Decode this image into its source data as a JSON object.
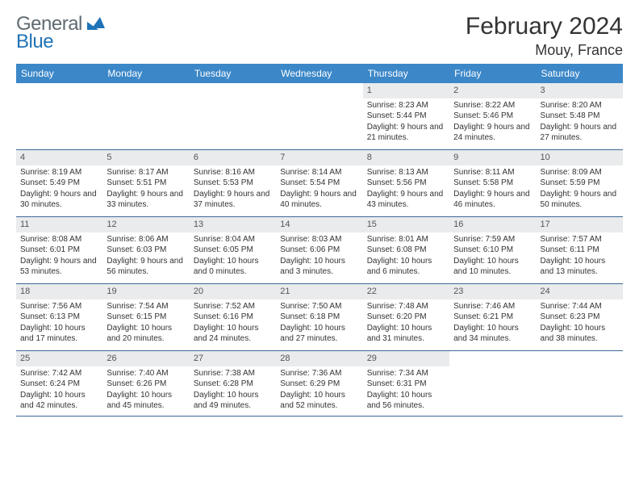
{
  "logo": {
    "word1": "General",
    "word2": "Blue",
    "mark_color": "#1f73b7",
    "text_color": "#5f6b72"
  },
  "title": "February 2024",
  "location": "Mouy, France",
  "colors": {
    "header_bg": "#3b87c8",
    "header_text": "#ffffff",
    "daynum_bg": "#e9ebec",
    "row_border": "#3b6a9a",
    "body_text": "#333333"
  },
  "weekdays": [
    "Sunday",
    "Monday",
    "Tuesday",
    "Wednesday",
    "Thursday",
    "Friday",
    "Saturday"
  ],
  "weeks": [
    [
      null,
      null,
      null,
      null,
      {
        "n": "1",
        "sunrise": "Sunrise: 8:23 AM",
        "sunset": "Sunset: 5:44 PM",
        "daylight": "Daylight: 9 hours and 21 minutes."
      },
      {
        "n": "2",
        "sunrise": "Sunrise: 8:22 AM",
        "sunset": "Sunset: 5:46 PM",
        "daylight": "Daylight: 9 hours and 24 minutes."
      },
      {
        "n": "3",
        "sunrise": "Sunrise: 8:20 AM",
        "sunset": "Sunset: 5:48 PM",
        "daylight": "Daylight: 9 hours and 27 minutes."
      }
    ],
    [
      {
        "n": "4",
        "sunrise": "Sunrise: 8:19 AM",
        "sunset": "Sunset: 5:49 PM",
        "daylight": "Daylight: 9 hours and 30 minutes."
      },
      {
        "n": "5",
        "sunrise": "Sunrise: 8:17 AM",
        "sunset": "Sunset: 5:51 PM",
        "daylight": "Daylight: 9 hours and 33 minutes."
      },
      {
        "n": "6",
        "sunrise": "Sunrise: 8:16 AM",
        "sunset": "Sunset: 5:53 PM",
        "daylight": "Daylight: 9 hours and 37 minutes."
      },
      {
        "n": "7",
        "sunrise": "Sunrise: 8:14 AM",
        "sunset": "Sunset: 5:54 PM",
        "daylight": "Daylight: 9 hours and 40 minutes."
      },
      {
        "n": "8",
        "sunrise": "Sunrise: 8:13 AM",
        "sunset": "Sunset: 5:56 PM",
        "daylight": "Daylight: 9 hours and 43 minutes."
      },
      {
        "n": "9",
        "sunrise": "Sunrise: 8:11 AM",
        "sunset": "Sunset: 5:58 PM",
        "daylight": "Daylight: 9 hours and 46 minutes."
      },
      {
        "n": "10",
        "sunrise": "Sunrise: 8:09 AM",
        "sunset": "Sunset: 5:59 PM",
        "daylight": "Daylight: 9 hours and 50 minutes."
      }
    ],
    [
      {
        "n": "11",
        "sunrise": "Sunrise: 8:08 AM",
        "sunset": "Sunset: 6:01 PM",
        "daylight": "Daylight: 9 hours and 53 minutes."
      },
      {
        "n": "12",
        "sunrise": "Sunrise: 8:06 AM",
        "sunset": "Sunset: 6:03 PM",
        "daylight": "Daylight: 9 hours and 56 minutes."
      },
      {
        "n": "13",
        "sunrise": "Sunrise: 8:04 AM",
        "sunset": "Sunset: 6:05 PM",
        "daylight": "Daylight: 10 hours and 0 minutes."
      },
      {
        "n": "14",
        "sunrise": "Sunrise: 8:03 AM",
        "sunset": "Sunset: 6:06 PM",
        "daylight": "Daylight: 10 hours and 3 minutes."
      },
      {
        "n": "15",
        "sunrise": "Sunrise: 8:01 AM",
        "sunset": "Sunset: 6:08 PM",
        "daylight": "Daylight: 10 hours and 6 minutes."
      },
      {
        "n": "16",
        "sunrise": "Sunrise: 7:59 AM",
        "sunset": "Sunset: 6:10 PM",
        "daylight": "Daylight: 10 hours and 10 minutes."
      },
      {
        "n": "17",
        "sunrise": "Sunrise: 7:57 AM",
        "sunset": "Sunset: 6:11 PM",
        "daylight": "Daylight: 10 hours and 13 minutes."
      }
    ],
    [
      {
        "n": "18",
        "sunrise": "Sunrise: 7:56 AM",
        "sunset": "Sunset: 6:13 PM",
        "daylight": "Daylight: 10 hours and 17 minutes."
      },
      {
        "n": "19",
        "sunrise": "Sunrise: 7:54 AM",
        "sunset": "Sunset: 6:15 PM",
        "daylight": "Daylight: 10 hours and 20 minutes."
      },
      {
        "n": "20",
        "sunrise": "Sunrise: 7:52 AM",
        "sunset": "Sunset: 6:16 PM",
        "daylight": "Daylight: 10 hours and 24 minutes."
      },
      {
        "n": "21",
        "sunrise": "Sunrise: 7:50 AM",
        "sunset": "Sunset: 6:18 PM",
        "daylight": "Daylight: 10 hours and 27 minutes."
      },
      {
        "n": "22",
        "sunrise": "Sunrise: 7:48 AM",
        "sunset": "Sunset: 6:20 PM",
        "daylight": "Daylight: 10 hours and 31 minutes."
      },
      {
        "n": "23",
        "sunrise": "Sunrise: 7:46 AM",
        "sunset": "Sunset: 6:21 PM",
        "daylight": "Daylight: 10 hours and 34 minutes."
      },
      {
        "n": "24",
        "sunrise": "Sunrise: 7:44 AM",
        "sunset": "Sunset: 6:23 PM",
        "daylight": "Daylight: 10 hours and 38 minutes."
      }
    ],
    [
      {
        "n": "25",
        "sunrise": "Sunrise: 7:42 AM",
        "sunset": "Sunset: 6:24 PM",
        "daylight": "Daylight: 10 hours and 42 minutes."
      },
      {
        "n": "26",
        "sunrise": "Sunrise: 7:40 AM",
        "sunset": "Sunset: 6:26 PM",
        "daylight": "Daylight: 10 hours and 45 minutes."
      },
      {
        "n": "27",
        "sunrise": "Sunrise: 7:38 AM",
        "sunset": "Sunset: 6:28 PM",
        "daylight": "Daylight: 10 hours and 49 minutes."
      },
      {
        "n": "28",
        "sunrise": "Sunrise: 7:36 AM",
        "sunset": "Sunset: 6:29 PM",
        "daylight": "Daylight: 10 hours and 52 minutes."
      },
      {
        "n": "29",
        "sunrise": "Sunrise: 7:34 AM",
        "sunset": "Sunset: 6:31 PM",
        "daylight": "Daylight: 10 hours and 56 minutes."
      },
      null,
      null
    ]
  ]
}
